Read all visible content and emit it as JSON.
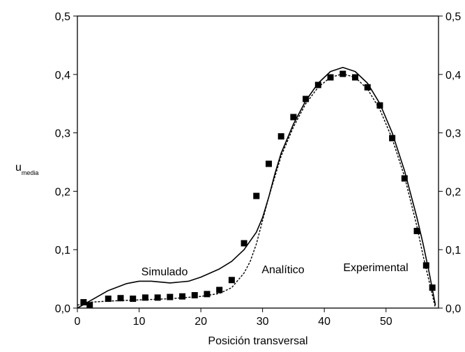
{
  "chart_data": {
    "type": "line",
    "xlabel": "Posición transversal",
    "ylabel": {
      "main": "u",
      "sub": "media"
    },
    "xlim": [
      0,
      58.5
    ],
    "xticks": [
      0,
      10,
      20,
      30,
      40,
      50
    ],
    "ylim": [
      0,
      0.5
    ],
    "yticks": [
      {
        "value": 0,
        "label": "0,0"
      },
      {
        "value": 0.1,
        "label": "0,1"
      },
      {
        "value": 0.2,
        "label": "0,2"
      },
      {
        "value": 0.3,
        "label": "0,3"
      },
      {
        "value": 0.4,
        "label": "0,4"
      },
      {
        "value": 0.5,
        "label": "0,5"
      }
    ],
    "y2lim": [
      0,
      0.5
    ],
    "y2ticks": [
      {
        "value": 0,
        "label": "0,0"
      },
      {
        "value": 0.1,
        "label": "0,1"
      },
      {
        "value": 0.2,
        "label": "0,2"
      },
      {
        "value": 0.3,
        "label": "0,3"
      },
      {
        "value": 0.4,
        "label": "0,4"
      },
      {
        "value": 0.5,
        "label": "0,5"
      }
    ],
    "series": [
      {
        "name": "Simulado",
        "color": "#000000",
        "style": "solid",
        "x": [
          0,
          2,
          5,
          8,
          10,
          12,
          15,
          18,
          20,
          23,
          25,
          27,
          29,
          30,
          31,
          32,
          33,
          35,
          37,
          39,
          41,
          43,
          45,
          47,
          49,
          51,
          53,
          55,
          56,
          57,
          58
        ],
        "values": [
          0,
          0.012,
          0.03,
          0.042,
          0.046,
          0.046,
          0.043,
          0.046,
          0.053,
          0.067,
          0.08,
          0.1,
          0.13,
          0.155,
          0.19,
          0.23,
          0.265,
          0.315,
          0.355,
          0.385,
          0.405,
          0.412,
          0.405,
          0.385,
          0.35,
          0.3,
          0.235,
          0.155,
          0.11,
          0.06,
          0.005
        ]
      },
      {
        "name": "Analítico",
        "color": "#000000",
        "style": "dashed",
        "x": [
          0,
          2,
          5,
          10,
          15,
          20,
          23,
          25,
          27,
          28,
          29,
          30,
          31,
          32,
          33,
          35,
          37,
          39,
          41,
          43,
          45,
          47,
          49,
          51,
          53,
          55,
          56,
          57,
          58
        ],
        "values": [
          0.005,
          0.01,
          0.012,
          0.014,
          0.016,
          0.02,
          0.025,
          0.035,
          0.06,
          0.08,
          0.11,
          0.15,
          0.19,
          0.225,
          0.26,
          0.31,
          0.35,
          0.378,
          0.395,
          0.401,
          0.395,
          0.375,
          0.34,
          0.29,
          0.225,
          0.14,
          0.09,
          0.045,
          0
        ]
      },
      {
        "name": "Experimental",
        "color": "#000000",
        "style": "markers",
        "x": [
          1,
          2,
          5,
          7,
          9,
          11,
          13,
          15,
          17,
          19,
          21,
          23,
          25,
          27,
          29,
          31,
          33,
          35,
          37,
          39,
          41,
          43,
          45,
          47,
          49,
          51,
          53,
          55,
          56.5,
          57.5
        ],
        "values": [
          0.01,
          0.005,
          0.016,
          0.017,
          0.016,
          0.018,
          0.018,
          0.019,
          0.02,
          0.022,
          0.024,
          0.031,
          0.048,
          0.111,
          0.192,
          0.247,
          0.294,
          0.327,
          0.358,
          0.382,
          0.395,
          0.401,
          0.395,
          0.378,
          0.347,
          0.291,
          0.222,
          0.132,
          0.073,
          0.035
        ]
      }
    ]
  }
}
